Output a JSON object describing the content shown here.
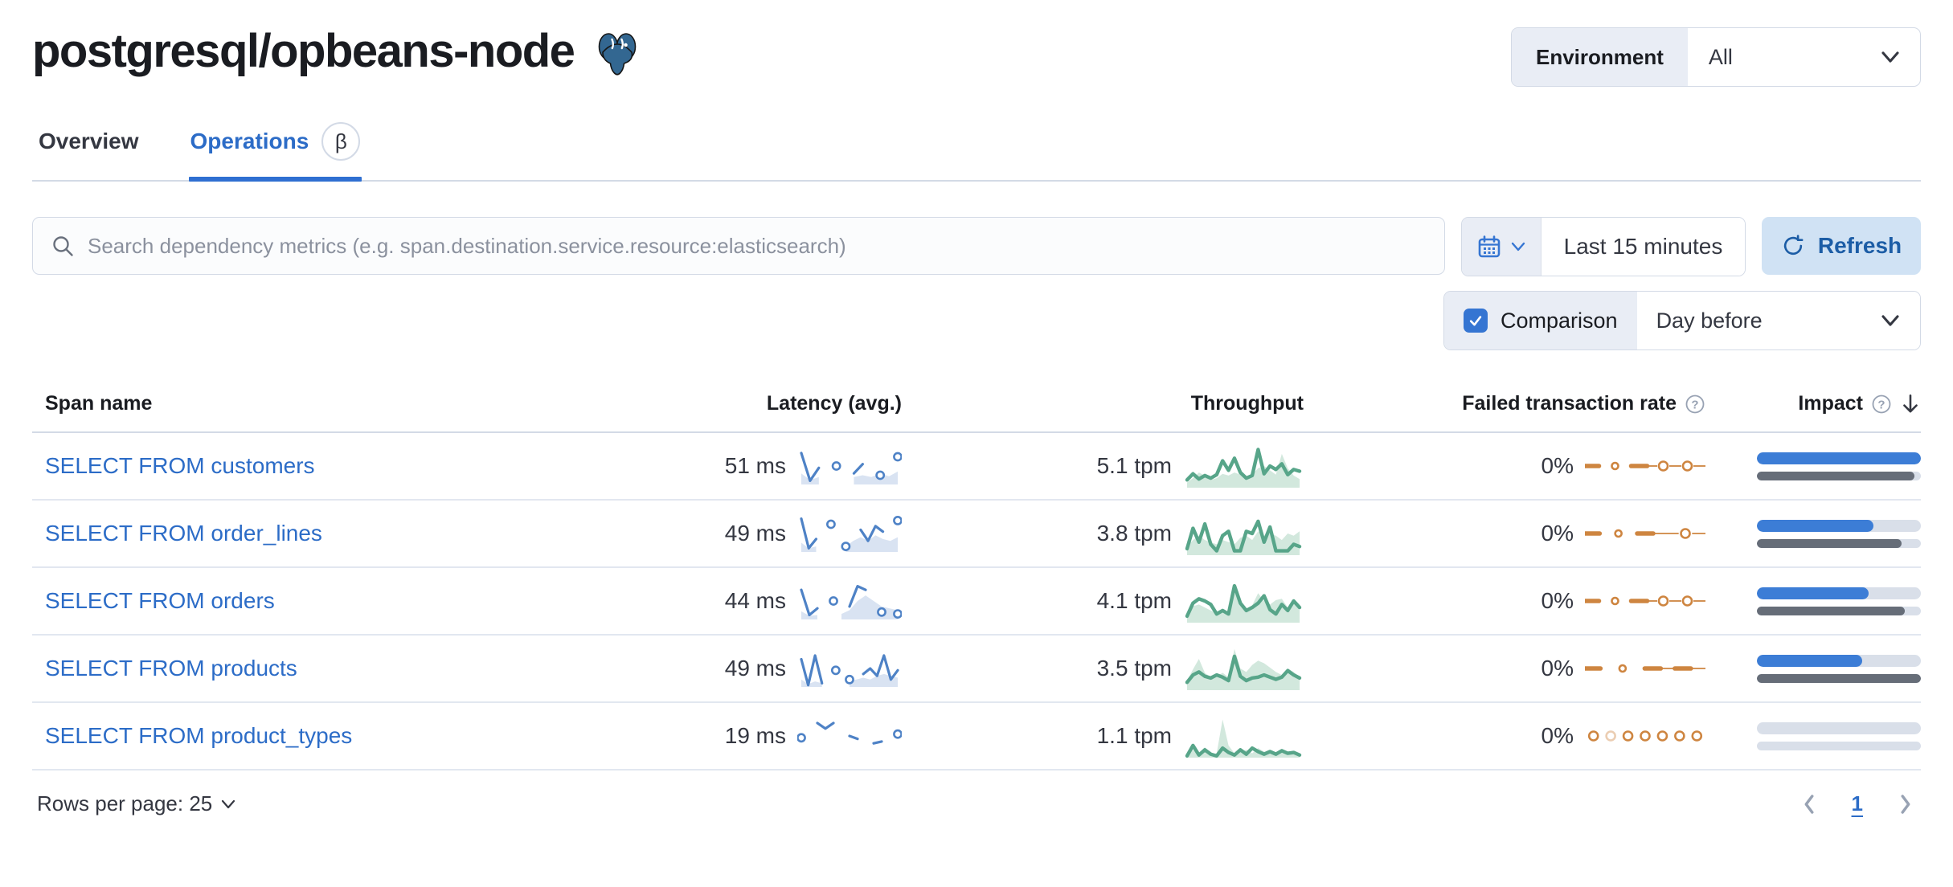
{
  "header": {
    "title": "postgresql/opbeans-node",
    "environment_label": "Environment",
    "environment_value": "All"
  },
  "tabs": [
    {
      "label": "Overview",
      "active": false
    },
    {
      "label": "Operations",
      "active": true,
      "beta": "β"
    }
  ],
  "toolbar": {
    "search_placeholder": "Search dependency metrics (e.g. span.destination.service.resource:elasticsearch)",
    "time_range": "Last 15 minutes",
    "refresh_label": "Refresh",
    "comparison_label": "Comparison",
    "comparison_checked": true,
    "comparison_value": "Day before"
  },
  "icons": {
    "help_glyph": "?"
  },
  "table": {
    "columns": [
      "Span name",
      "Latency (avg.)",
      "Throughput",
      "Failed transaction rate",
      "Impact"
    ],
    "rows": [
      {
        "name": "SELECT FROM customers",
        "latency": "51 ms",
        "throughput": "5.1 tpm",
        "failed_rate": "0%",
        "impact": 100,
        "impact_prev": 96,
        "latency_spark": {
          "cur": [
            0.85,
            0.1,
            0.45,
            null,
            0.5,
            null,
            0.3,
            0.55,
            null,
            0.25,
            null,
            0.75
          ],
          "prev": [
            0.3,
            0.12,
            0.2,
            null,
            null,
            null,
            0.2,
            0.25,
            0.2,
            0.3,
            0.22,
            0.35
          ]
        },
        "throughput_spark": {
          "cur": [
            0.18,
            0.32,
            0.2,
            0.28,
            0.22,
            0.3,
            0.62,
            0.4,
            0.68,
            0.35,
            0.22,
            0.28,
            0.88,
            0.32,
            0.5,
            0.42,
            0.55,
            0.3,
            0.42,
            0.38
          ],
          "prev": [
            0.12,
            0.22,
            0.35,
            0.28,
            0.18,
            0.22,
            0.32,
            0.28,
            0.35,
            0.3,
            0.25,
            0.3,
            0.45,
            0.5,
            0.4,
            0.3,
            0.78,
            0.45,
            0.28,
            0.2
          ]
        },
        "ftr_spark": [
          "d",
          ".",
          "o",
          ".",
          "d",
          "-",
          "O",
          "-",
          "O",
          "-"
        ]
      },
      {
        "name": "SELECT FROM order_lines",
        "latency": "49 ms",
        "throughput": "3.8 tpm",
        "failed_rate": "0%",
        "impact": 71,
        "impact_prev": 88,
        "latency_spark": {
          "cur": [
            0.9,
            0.1,
            0.35,
            null,
            0.75,
            null,
            0.15,
            null,
            0.6,
            0.3,
            0.7,
            0.55,
            null,
            0.85
          ],
          "prev": [
            0.25,
            0.1,
            0.15,
            null,
            null,
            null,
            0.15,
            0.3,
            0.4,
            0.3,
            0.45,
            0.35,
            0.3,
            0.4
          ]
        },
        "throughput_spark": {
          "cur": [
            0.15,
            0.62,
            0.3,
            0.72,
            0.25,
            0.1,
            0.45,
            0.55,
            0.1,
            0.1,
            0.55,
            0.5,
            0.78,
            0.3,
            0.65,
            0.1,
            0.1,
            0.1,
            0.25,
            0.2
          ],
          "prev": [
            0.2,
            0.35,
            0.45,
            0.35,
            0.3,
            0.25,
            0.35,
            0.3,
            0.25,
            0.4,
            0.45,
            0.35,
            0.55,
            0.45,
            0.5,
            0.45,
            0.35,
            0.5,
            0.45,
            0.55
          ]
        },
        "ftr_spark": [
          "d",
          ".",
          "o",
          ".",
          "d",
          "-",
          "-",
          "O",
          "-"
        ]
      },
      {
        "name": "SELECT FROM orders",
        "latency": "44 ms",
        "throughput": "4.1 tpm",
        "failed_rate": "0%",
        "impact": 68,
        "impact_prev": 90,
        "latency_spark": {
          "cur": [
            0.8,
            0.12,
            0.3,
            null,
            0.5,
            null,
            0.35,
            0.9,
            0.8,
            null,
            0.2,
            null,
            0.15
          ],
          "prev": [
            0.22,
            0.1,
            0.12,
            null,
            null,
            0.15,
            0.25,
            0.5,
            0.65,
            0.5,
            0.35,
            0.3,
            0.25
          ]
        },
        "throughput_spark": {
          "cur": [
            0.15,
            0.45,
            0.55,
            0.5,
            0.42,
            0.2,
            0.28,
            0.2,
            0.85,
            0.45,
            0.28,
            0.35,
            0.45,
            0.62,
            0.3,
            0.2,
            0.42,
            0.28,
            0.5,
            0.35
          ],
          "prev": [
            0.2,
            0.38,
            0.42,
            0.35,
            0.28,
            0.22,
            0.3,
            0.25,
            0.88,
            0.42,
            0.32,
            0.4,
            0.68,
            0.5,
            0.42,
            0.52,
            0.55,
            0.35,
            0.45,
            0.3
          ]
        },
        "ftr_spark": [
          "d",
          ".",
          "o",
          ".",
          "d",
          "-",
          "O",
          "-",
          "O",
          "-"
        ]
      },
      {
        "name": "SELECT FROM products",
        "latency": "49 ms",
        "throughput": "3.5 tpm",
        "failed_rate": "0%",
        "impact": 64,
        "impact_prev": 100,
        "latency_spark": {
          "cur": [
            0.75,
            0.05,
            0.85,
            0.1,
            null,
            0.45,
            null,
            0.2,
            null,
            0.35,
            0.5,
            0.3,
            0.85,
            0.2,
            0.45
          ],
          "prev": [
            0.2,
            0.08,
            0.15,
            0.1,
            null,
            null,
            null,
            0.15,
            0.2,
            0.25,
            0.2,
            0.3,
            0.35,
            0.3,
            0.25
          ]
        },
        "throughput_spark": {
          "cur": [
            0.18,
            0.35,
            0.42,
            0.32,
            0.28,
            0.35,
            0.3,
            0.22,
            0.78,
            0.32,
            0.22,
            0.28,
            0.3,
            0.35,
            0.3,
            0.25,
            0.3,
            0.45,
            0.35,
            0.28
          ],
          "prev": [
            0.22,
            0.48,
            0.72,
            0.4,
            0.3,
            0.32,
            0.4,
            0.3,
            0.95,
            0.5,
            0.42,
            0.58,
            0.68,
            0.62,
            0.52,
            0.42,
            0.35,
            0.5,
            0.42,
            0.3
          ]
        },
        "ftr_spark": [
          "d",
          ".",
          "o",
          ".",
          "d",
          "-",
          "d",
          "-"
        ]
      },
      {
        "name": "SELECT FROM product_types",
        "latency": "19 ms",
        "throughput": "1.1 tpm",
        "failed_rate": "0%",
        "impact": 0,
        "impact_prev": 0,
        "latency_spark": {
          "cur": [
            0.45,
            null,
            0.85,
            0.7,
            0.85,
            null,
            0.5,
            0.42,
            null,
            0.3,
            0.35,
            null,
            0.55
          ],
          "prev": null
        },
        "throughput_spark": {
          "cur": [
            0.04,
            0.28,
            0.06,
            0.18,
            0.08,
            0.04,
            0.22,
            0.12,
            0.06,
            0.18,
            0.08,
            0.22,
            0.14,
            0.08,
            0.14,
            0.08,
            0.16,
            0.1,
            0.12,
            0.06
          ],
          "prev": [
            0.04,
            0.18,
            0.1,
            0.24,
            0.08,
            0.1,
            0.88,
            0.28,
            0.1,
            0.14,
            0.18,
            0.1,
            0.22,
            0.14,
            0.1,
            0.06,
            0.12,
            0.08,
            0.1,
            0.05
          ]
        },
        "ftr_spark": [
          "O",
          "F",
          "O",
          "O",
          "O",
          "O",
          "O"
        ]
      }
    ]
  },
  "footer": {
    "rows_per_page": "Rows per page: 25",
    "page": "1"
  },
  "colors": {
    "link_blue": "#2c6cc7",
    "impact_blue": "#3c7dd6",
    "impact_gray": "#666d78",
    "bar_track": "#d9dfe9",
    "latency_line": "#4e82c6",
    "latency_fill": "#d9e3f2",
    "throughput_line": "#57a589",
    "throughput_fill": "#d2e8dd",
    "failed_orange": "#ce8540",
    "refresh_bg": "#d0e2f4",
    "refresh_text": "#1c5da6",
    "checkbox_blue": "#3575d2",
    "border_gray": "#d3dae6"
  }
}
